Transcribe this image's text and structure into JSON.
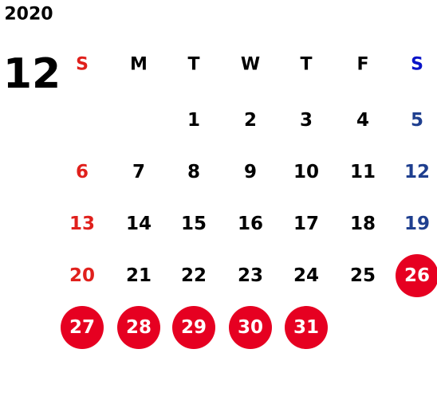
{
  "year": "2020",
  "month": "12",
  "weekdays": [
    "S",
    "M",
    "T",
    "W",
    "T",
    "F",
    "S"
  ],
  "weeks": [
    [
      null,
      null,
      {
        "day": 1
      },
      {
        "day": 2
      },
      {
        "day": 3
      },
      {
        "day": 4
      },
      {
        "day": 5
      }
    ],
    [
      {
        "day": 6
      },
      {
        "day": 7
      },
      {
        "day": 8
      },
      {
        "day": 9
      },
      {
        "day": 10
      },
      {
        "day": 11
      },
      {
        "day": 12
      }
    ],
    [
      {
        "day": 13
      },
      {
        "day": 14
      },
      {
        "day": 15
      },
      {
        "day": 16
      },
      {
        "day": 17
      },
      {
        "day": 18
      },
      {
        "day": 19
      }
    ],
    [
      {
        "day": 20
      },
      {
        "day": 21
      },
      {
        "day": 22
      },
      {
        "day": 23
      },
      {
        "day": 24
      },
      {
        "day": 25
      },
      {
        "day": 26,
        "marked": true
      }
    ],
    [
      {
        "day": 27,
        "marked": true
      },
      {
        "day": 28,
        "marked": true
      },
      {
        "day": 29,
        "marked": true
      },
      {
        "day": 30,
        "marked": true
      },
      {
        "day": 31,
        "marked": true
      },
      null,
      null
    ]
  ]
}
